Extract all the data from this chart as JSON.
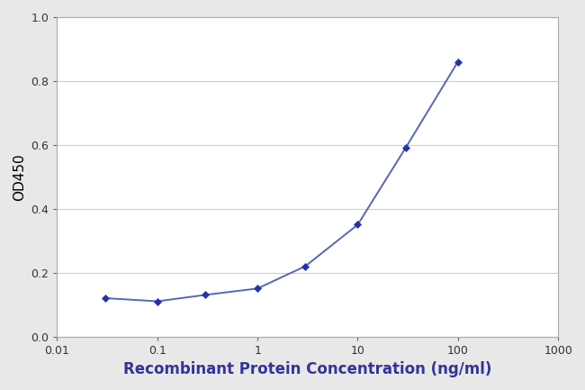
{
  "x_values": [
    0.03,
    0.1,
    0.3,
    1.0,
    3.0,
    10.0,
    30.0,
    100.0
  ],
  "y_values": [
    0.12,
    0.11,
    0.13,
    0.15,
    0.22,
    0.35,
    0.59,
    0.86
  ],
  "line_color": "#5566bb",
  "marker_color": "#2233aa",
  "marker_style": "D",
  "marker_size": 4,
  "line_width": 1.4,
  "xlabel": "Recombinant Protein Concentration (ng/ml)",
  "ylabel": "OD450",
  "xlabel_fontsize": 12,
  "ylabel_fontsize": 11,
  "xlabel_fontweight": "bold",
  "ylabel_fontweight": "normal",
  "ylim": [
    0.0,
    1.0
  ],
  "yticks": [
    0.0,
    0.2,
    0.4,
    0.6,
    0.8,
    1.0
  ],
  "xlim_min": 0.01,
  "xlim_max": 1000,
  "outer_bg_color": "#e8e8e8",
  "plot_bg_color": "#ffffff",
  "grid_color": "#cccccc",
  "tick_label_fontsize": 9,
  "spine_color": "#aaaaaa",
  "xlabel_color": "#333399",
  "ylabel_color": "#000000",
  "tick_color": "#666666"
}
